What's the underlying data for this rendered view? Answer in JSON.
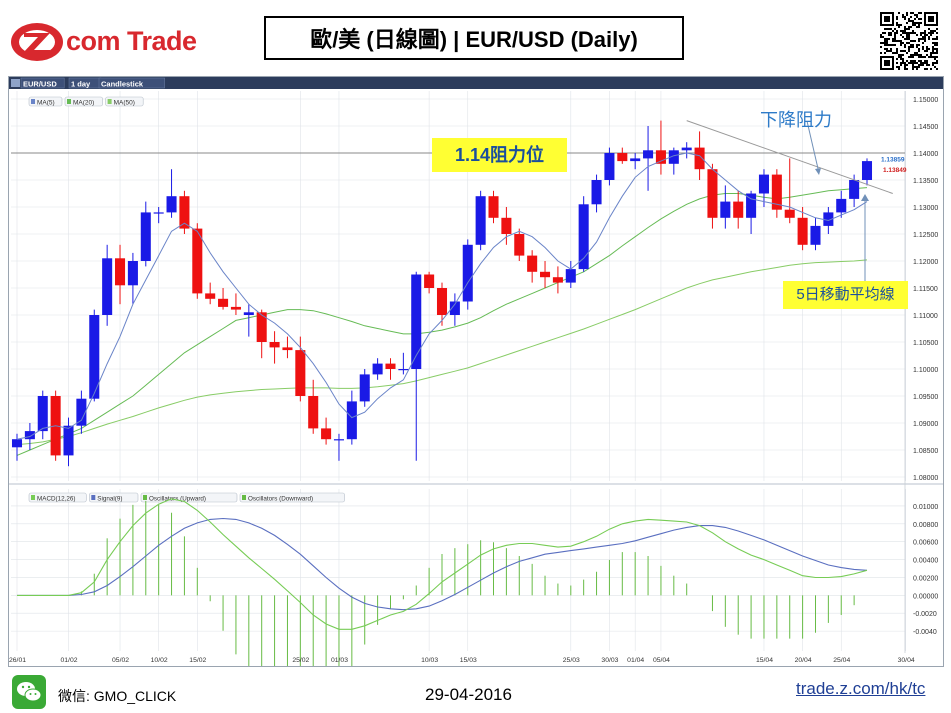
{
  "header": {
    "brand_text": "com Trade",
    "title": "歐/美 (日線圖) | EUR/USD  (Daily)"
  },
  "chart_data": {
    "type": "candlestick",
    "toolbar": {
      "symbol": "EUR/USD",
      "interval": "1 day",
      "style": "Candlestick"
    },
    "price_legend": [
      "MA(5)",
      "MA(20)",
      "MA(50)"
    ],
    "indicator_legend": [
      "MACD(12,26)",
      "Signal(9)",
      "Oscillators (Upward)",
      "Oscillators (Downward)"
    ],
    "price_axis": {
      "ylim": [
        1.08,
        1.15
      ],
      "ticks": [
        "1.15000",
        "1.14500",
        "1.14000",
        "1.13500",
        "1.13000",
        "1.12500",
        "1.12000",
        "1.11500",
        "1.11000",
        "1.10500",
        "1.10000",
        "1.09500",
        "1.09000",
        "1.08500",
        "1.08000"
      ],
      "tick_values": [
        1.15,
        1.145,
        1.14,
        1.135,
        1.13,
        1.125,
        1.12,
        1.115,
        1.11,
        1.105,
        1.1,
        1.095,
        1.09,
        1.085,
        1.08
      ]
    },
    "macd_axis": {
      "ylim": [
        -0.006,
        0.011
      ],
      "ticks": [
        "0.01000",
        "0.00800",
        "0.00600",
        "0.00400",
        "0.00200",
        "0.00000",
        "-0.0020",
        "-0.0040"
      ],
      "tick_values": [
        0.01,
        0.008,
        0.006,
        0.004,
        0.002,
        0.0,
        -0.002,
        -0.004
      ]
    },
    "x_labels": [
      {
        "label": "26/01",
        "index": 0
      },
      {
        "label": "01/02",
        "index": 4
      },
      {
        "label": "05/02",
        "index": 8
      },
      {
        "label": "10/02",
        "index": 11
      },
      {
        "label": "15/02",
        "index": 14
      },
      {
        "label": "25/02",
        "index": 22
      },
      {
        "label": "01/03",
        "index": 25
      },
      {
        "label": "10/03",
        "index": 32
      },
      {
        "label": "15/03",
        "index": 35
      },
      {
        "label": "25/03",
        "index": 43
      },
      {
        "label": "30/03",
        "index": 46
      },
      {
        "label": "01/04",
        "index": 48
      },
      {
        "label": "05/04",
        "index": 50
      },
      {
        "label": "15/04",
        "index": 58
      },
      {
        "label": "20/04",
        "index": 61
      },
      {
        "label": "25/04",
        "index": 64
      },
      {
        "label": "30/04",
        "index": 69
      }
    ],
    "ohlc": [
      [
        1.0855,
        1.088,
        1.083,
        1.087
      ],
      [
        1.087,
        1.09,
        1.085,
        1.0885
      ],
      [
        1.0885,
        1.096,
        1.087,
        1.095
      ],
      [
        1.095,
        1.096,
        1.083,
        1.084
      ],
      [
        1.084,
        1.091,
        1.082,
        1.0895
      ],
      [
        1.0895,
        1.096,
        1.088,
        1.0945
      ],
      [
        1.0945,
        1.111,
        1.094,
        1.11
      ],
      [
        1.11,
        1.123,
        1.108,
        1.1205
      ],
      [
        1.1205,
        1.123,
        1.112,
        1.1155
      ],
      [
        1.1155,
        1.1215,
        1.112,
        1.12
      ],
      [
        1.12,
        1.131,
        1.119,
        1.129
      ],
      [
        1.129,
        1.13,
        1.127,
        1.129
      ],
      [
        1.129,
        1.137,
        1.128,
        1.132
      ],
      [
        1.132,
        1.133,
        1.125,
        1.126
      ],
      [
        1.126,
        1.127,
        1.113,
        1.114
      ],
      [
        1.114,
        1.116,
        1.112,
        1.113
      ],
      [
        1.113,
        1.115,
        1.111,
        1.1115
      ],
      [
        1.1115,
        1.114,
        1.11,
        1.111
      ],
      [
        1.11,
        1.112,
        1.106,
        1.1105
      ],
      [
        1.1105,
        1.111,
        1.102,
        1.105
      ],
      [
        1.105,
        1.107,
        1.101,
        1.104
      ],
      [
        1.104,
        1.106,
        1.102,
        1.1035
      ],
      [
        1.1035,
        1.106,
        1.094,
        1.095
      ],
      [
        1.095,
        1.098,
        1.088,
        1.089
      ],
      [
        1.089,
        1.091,
        1.086,
        1.087
      ],
      [
        1.087,
        1.088,
        1.083,
        1.087
      ],
      [
        1.087,
        1.096,
        1.086,
        1.094
      ],
      [
        1.094,
        1.1,
        1.093,
        1.099
      ],
      [
        1.099,
        1.102,
        1.098,
        1.101
      ],
      [
        1.101,
        1.102,
        1.098,
        1.1
      ],
      [
        1.1,
        1.103,
        1.099,
        1.1
      ],
      [
        1.1,
        1.118,
        1.083,
        1.1175
      ],
      [
        1.1175,
        1.118,
        1.114,
        1.115
      ],
      [
        1.115,
        1.116,
        1.108,
        1.11
      ],
      [
        1.11,
        1.114,
        1.108,
        1.1125
      ],
      [
        1.1125,
        1.124,
        1.111,
        1.123
      ],
      [
        1.123,
        1.133,
        1.122,
        1.132
      ],
      [
        1.132,
        1.133,
        1.127,
        1.128
      ],
      [
        1.128,
        1.13,
        1.123,
        1.125
      ],
      [
        1.125,
        1.126,
        1.12,
        1.121
      ],
      [
        1.121,
        1.122,
        1.116,
        1.118
      ],
      [
        1.118,
        1.12,
        1.115,
        1.117
      ],
      [
        1.117,
        1.119,
        1.114,
        1.116
      ],
      [
        1.116,
        1.12,
        1.115,
        1.1185
      ],
      [
        1.1185,
        1.132,
        1.118,
        1.1305
      ],
      [
        1.1305,
        1.136,
        1.129,
        1.135
      ],
      [
        1.135,
        1.141,
        1.134,
        1.14
      ],
      [
        1.14,
        1.141,
        1.138,
        1.1385
      ],
      [
        1.1385,
        1.14,
        1.137,
        1.139
      ],
      [
        1.139,
        1.145,
        1.133,
        1.1405
      ],
      [
        1.1405,
        1.146,
        1.136,
        1.138
      ],
      [
        1.138,
        1.141,
        1.136,
        1.1405
      ],
      [
        1.1405,
        1.142,
        1.139,
        1.141
      ],
      [
        1.141,
        1.144,
        1.135,
        1.137
      ],
      [
        1.137,
        1.138,
        1.126,
        1.128
      ],
      [
        1.128,
        1.134,
        1.126,
        1.131
      ],
      [
        1.131,
        1.133,
        1.126,
        1.128
      ],
      [
        1.128,
        1.133,
        1.125,
        1.1325
      ],
      [
        1.1325,
        1.137,
        1.13,
        1.136
      ],
      [
        1.136,
        1.137,
        1.128,
        1.1295
      ],
      [
        1.1295,
        1.139,
        1.127,
        1.128
      ],
      [
        1.128,
        1.13,
        1.122,
        1.123
      ],
      [
        1.123,
        1.128,
        1.122,
        1.1265
      ],
      [
        1.1265,
        1.13,
        1.125,
        1.129
      ],
      [
        1.129,
        1.133,
        1.128,
        1.1315
      ],
      [
        1.1315,
        1.136,
        1.13,
        1.135
      ],
      [
        1.135,
        1.139,
        1.134,
        1.1385
      ]
    ],
    "ma5": [
      1.087,
      1.0875,
      1.089,
      1.0895,
      1.089,
      1.0905,
      1.0955,
      1.101,
      1.106,
      1.112,
      1.1165,
      1.121,
      1.1255,
      1.127,
      1.1255,
      1.1215,
      1.118,
      1.115,
      1.112,
      1.11,
      1.1085,
      1.1065,
      1.104,
      1.101,
      1.0975,
      1.0935,
      1.091,
      1.092,
      1.0945,
      1.0965,
      1.098,
      1.1025,
      1.1065,
      1.109,
      1.112,
      1.116,
      1.1195,
      1.1225,
      1.1245,
      1.1255,
      1.1245,
      1.1225,
      1.12,
      1.1185,
      1.1205,
      1.1235,
      1.128,
      1.132,
      1.1355,
      1.1375,
      1.1385,
      1.1395,
      1.14,
      1.1395,
      1.137,
      1.135,
      1.133,
      1.1315,
      1.131,
      1.1305,
      1.13,
      1.129,
      1.128,
      1.1275,
      1.1285,
      1.1295,
      1.131
    ],
    "ma20": [
      1.084,
      1.085,
      1.086,
      1.087,
      1.088,
      1.089,
      1.0905,
      1.092,
      1.0935,
      1.095,
      1.097,
      1.099,
      1.101,
      1.103,
      1.1045,
      1.106,
      1.1075,
      1.109,
      1.1095,
      1.11,
      1.1105,
      1.111,
      1.111,
      1.1108,
      1.1102,
      1.1095,
      1.1088,
      1.108,
      1.1075,
      1.107,
      1.1065,
      1.1065,
      1.1068,
      1.1072,
      1.1078,
      1.1085,
      1.1095,
      1.1108,
      1.112,
      1.113,
      1.114,
      1.115,
      1.116,
      1.117,
      1.118,
      1.1195,
      1.121,
      1.1228,
      1.1245,
      1.1262,
      1.1278,
      1.1292,
      1.1305,
      1.1315,
      1.1322,
      1.1325,
      1.1325,
      1.1322,
      1.1318,
      1.1315,
      1.1318,
      1.1322,
      1.1326,
      1.133,
      1.1332,
      1.1334,
      1.1336
    ],
    "ma50": [
      1.086,
      1.0862,
      1.0865,
      1.087,
      1.0875,
      1.0882,
      1.089,
      1.0898,
      1.0905,
      1.0912,
      1.092,
      1.0928,
      1.0935,
      1.0942,
      1.0948,
      1.0952,
      1.0955,
      1.0958,
      1.096,
      1.0962,
      1.0963,
      1.0964,
      1.0965,
      1.0965,
      1.0965,
      1.0964,
      1.0964,
      1.0965,
      1.0967,
      1.097,
      1.0973,
      1.0978,
      1.0984,
      1.099,
      1.0996,
      1.1002,
      1.101,
      1.1018,
      1.1026,
      1.1034,
      1.1042,
      1.105,
      1.1058,
      1.1066,
      1.1074,
      1.1083,
      1.1092,
      1.1101,
      1.111,
      1.112,
      1.113,
      1.114,
      1.115,
      1.1158,
      1.1165,
      1.117,
      1.1175,
      1.118,
      1.1184,
      1.1188,
      1.1192,
      1.1195,
      1.1197,
      1.1198,
      1.1199,
      1.12,
      1.1202
    ],
    "macd": [
      0.0,
      0.0,
      0.0,
      0.0,
      0.0,
      0.0003,
      0.0015,
      0.004,
      0.006,
      0.0078,
      0.0092,
      0.0102,
      0.0108,
      0.0105,
      0.0095,
      0.0082,
      0.0068,
      0.0055,
      0.0042,
      0.003,
      0.0018,
      0.0005,
      -0.0008,
      -0.0022,
      -0.0032,
      -0.0038,
      -0.0038,
      -0.0034,
      -0.0028,
      -0.0022,
      -0.0018,
      -0.001,
      0.0002,
      0.0015,
      0.0025,
      0.0035,
      0.0045,
      0.0052,
      0.0056,
      0.0058,
      0.0058,
      0.0056,
      0.0054,
      0.0055,
      0.006,
      0.0066,
      0.0074,
      0.008,
      0.0083,
      0.0085,
      0.0084,
      0.0083,
      0.0082,
      0.0078,
      0.007,
      0.006,
      0.0052,
      0.0045,
      0.004,
      0.0034,
      0.0028,
      0.0022,
      0.002,
      0.002,
      0.0021,
      0.0024,
      0.0028
    ],
    "signal": [
      0.0,
      0.0,
      0.0,
      0.0,
      0.0,
      0.0001,
      0.0004,
      0.0011,
      0.0021,
      0.0032,
      0.0044,
      0.0056,
      0.0066,
      0.0075,
      0.0081,
      0.0085,
      0.0086,
      0.0085,
      0.0081,
      0.0075,
      0.0067,
      0.0057,
      0.0046,
      0.0033,
      0.002,
      0.0008,
      -0.0002,
      -0.0009,
      -0.0013,
      -0.0015,
      -0.0016,
      -0.0015,
      -0.0012,
      -0.0006,
      0.0001,
      0.0009,
      0.0017,
      0.0025,
      0.0032,
      0.0038,
      0.0042,
      0.0046,
      0.0048,
      0.005,
      0.0052,
      0.0054,
      0.0056,
      0.0058,
      0.0061,
      0.0065,
      0.0069,
      0.0073,
      0.0076,
      0.0078,
      0.0078,
      0.0076,
      0.0072,
      0.0067,
      0.0062,
      0.0056,
      0.005,
      0.0044,
      0.0039,
      0.0034,
      0.0031,
      0.0029,
      0.0028
    ],
    "last_prices": {
      "bid": "1.13859",
      "ask": "1.13849"
    },
    "resistance_level": 1.14,
    "colors": {
      "up": "#1a1ae6",
      "down": "#ee1111",
      "ma5": "#6a84c8",
      "ma20": "#66bb55",
      "ma50": "#88cc66",
      "macd": "#77cc55",
      "signal": "#5a6fc0",
      "hist_up": "#66bb44",
      "hist_down": "#66bb44",
      "trendline": "#999999",
      "level": "#888888",
      "axis_text": "#333333"
    }
  },
  "annotations": {
    "resistance": "1.14阻力位",
    "downtrend": "下降阻力",
    "ma5": "5日移動平均線"
  },
  "footer": {
    "wechat_handle": "微信: GMO_CLICK",
    "date": "29-04-2016",
    "url": "trade.z.com/hk/tc"
  },
  "icons": {
    "logo": "zcom-logo-icon",
    "qr": "qr-code-icon",
    "wechat": "wechat-icon"
  }
}
